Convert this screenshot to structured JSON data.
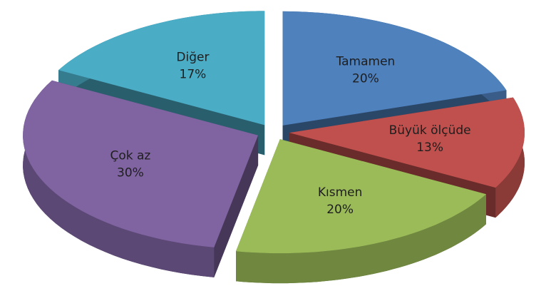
{
  "chart_data": {
    "type": "pie",
    "categories": [
      "Tamamen",
      "Büyük ölçüde",
      "Kısmen",
      "Çok az",
      "Diğer"
    ],
    "values": [
      20,
      13,
      20,
      30,
      17
    ],
    "value_labels": [
      "20%",
      "13%",
      "20%",
      "30%",
      "17%"
    ],
    "colors": [
      "#4f81bd",
      "#c0504d",
      "#9bbb59",
      "#8064a2",
      "#4bacc6"
    ]
  }
}
